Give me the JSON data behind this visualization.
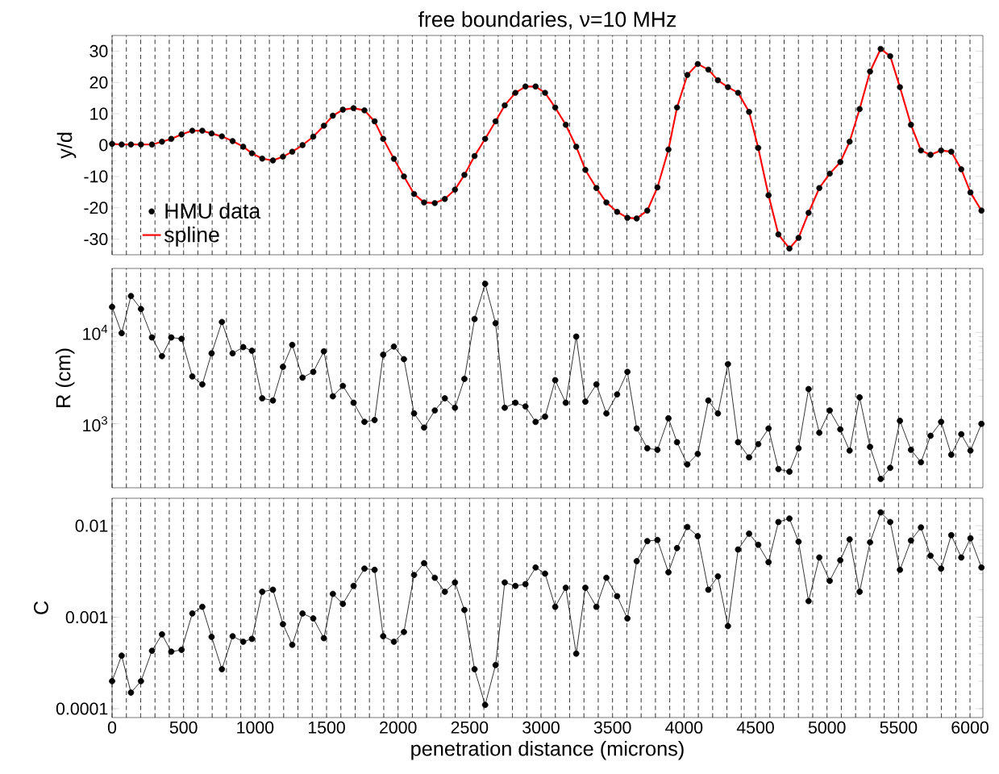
{
  "chart_data": [
    {
      "type": "scatter",
      "title": "free boundaries, ν=10 MHz",
      "ylabel": "y/d",
      "xlim": [
        0,
        6090
      ],
      "ylim": [
        -35,
        35
      ],
      "xticks": [
        0,
        500,
        1000,
        1500,
        2000,
        2500,
        3000,
        3500,
        4000,
        4500,
        5000,
        5500,
        6000
      ],
      "yticks": [
        -30,
        -20,
        -10,
        0,
        10,
        20,
        30
      ],
      "tick_labels": "y",
      "grid": "x",
      "legend": "bottom left",
      "series": [
        {
          "name": "HMU data",
          "type": "scatter",
          "marker": "circle",
          "color": "#000000",
          "x": [
            0,
            67,
            132,
            202,
            279,
            349,
            414,
            486,
            561,
            631,
            696,
            768,
            843,
            917,
            978,
            1050,
            1125,
            1195,
            1260,
            1332,
            1407,
            1481,
            1544,
            1614,
            1689,
            1765,
            1836,
            1896,
            1971,
            2041,
            2112,
            2182,
            2257,
            2327,
            2398,
            2464,
            2535,
            2609,
            2682,
            2746,
            2821,
            2891,
            2962,
            3028,
            3099,
            3173,
            3246,
            3310,
            3387,
            3457,
            3532,
            3604,
            3669,
            3743,
            3814,
            3891,
            3951,
            4023,
            4096,
            4170,
            4237,
            4307,
            4378,
            4455,
            4519,
            4591,
            4660,
            4737,
            4801,
            4871,
            4946,
            5019,
            5093,
            5158,
            5228,
            5301,
            5375,
            5442,
            5510,
            5587,
            5657,
            5724,
            5798,
            5869,
            5939,
            6003,
            6080
          ],
          "values": [
            0.4,
            0.2,
            0.2,
            0.2,
            0.2,
            1.1,
            2.0,
            3.4,
            4.6,
            4.6,
            3.7,
            2.8,
            1.3,
            -0.5,
            -2.6,
            -4.3,
            -4.9,
            -3.7,
            -2.1,
            0.0,
            2.7,
            6.2,
            9.4,
            11.3,
            11.8,
            11.1,
            7.6,
            2.0,
            -4.4,
            -10.0,
            -15.6,
            -18.3,
            -18.5,
            -17.2,
            -14.2,
            -9.5,
            -3.5,
            2.0,
            7.6,
            12.7,
            16.7,
            18.7,
            18.7,
            16.7,
            12.0,
            6.5,
            -0.5,
            -7.9,
            -13.7,
            -18.3,
            -21.3,
            -23.2,
            -23.4,
            -20.9,
            -13.5,
            -1.4,
            12.0,
            22.4,
            25.9,
            24.1,
            20.7,
            18.5,
            16.7,
            10.6,
            -0.9,
            -16.0,
            -28.5,
            -33.0,
            -29.6,
            -21.6,
            -13.7,
            -9.1,
            -5.4,
            1.1,
            11.5,
            23.5,
            30.7,
            28.4,
            18.5,
            6.5,
            -1.7,
            -3.1,
            -1.7,
            -2.1,
            -7.7,
            -15.1,
            -20.9
          ]
        },
        {
          "name": "spline",
          "type": "line",
          "marker": "none",
          "color": "#ff0000",
          "x": [
            0,
            67,
            132,
            202,
            279,
            349,
            414,
            486,
            561,
            631,
            696,
            768,
            843,
            917,
            978,
            1050,
            1125,
            1195,
            1260,
            1332,
            1407,
            1481,
            1544,
            1614,
            1689,
            1765,
            1836,
            1896,
            1971,
            2041,
            2112,
            2182,
            2257,
            2327,
            2398,
            2464,
            2535,
            2609,
            2682,
            2746,
            2821,
            2891,
            2962,
            3028,
            3099,
            3173,
            3246,
            3310,
            3387,
            3457,
            3532,
            3604,
            3669,
            3743,
            3814,
            3891,
            3951,
            4023,
            4096,
            4170,
            4237,
            4307,
            4378,
            4455,
            4519,
            4591,
            4660,
            4737,
            4801,
            4871,
            4946,
            5019,
            5093,
            5158,
            5228,
            5301,
            5375,
            5442,
            5510,
            5587,
            5657,
            5724,
            5798,
            5869,
            5939,
            6003,
            6080
          ],
          "values": [
            0.4,
            0.2,
            0.2,
            0.2,
            0.2,
            1.1,
            2.0,
            3.4,
            4.6,
            4.6,
            3.7,
            2.8,
            1.3,
            -0.5,
            -2.6,
            -4.3,
            -4.9,
            -3.7,
            -2.1,
            0.0,
            2.7,
            6.2,
            9.4,
            11.3,
            11.8,
            11.1,
            7.6,
            2.0,
            -4.4,
            -10.0,
            -15.6,
            -18.3,
            -18.5,
            -17.2,
            -14.2,
            -9.5,
            -3.5,
            2.0,
            7.6,
            12.7,
            16.7,
            18.7,
            18.7,
            16.7,
            12.0,
            6.5,
            -0.5,
            -7.9,
            -13.7,
            -18.3,
            -21.3,
            -23.2,
            -23.4,
            -20.9,
            -13.5,
            -1.4,
            12.0,
            22.4,
            25.9,
            24.1,
            20.7,
            18.5,
            16.7,
            10.6,
            -0.9,
            -16.0,
            -28.5,
            -33.0,
            -29.6,
            -21.6,
            -13.7,
            -9.1,
            -5.4,
            1.1,
            11.5,
            23.5,
            30.7,
            28.4,
            18.5,
            6.5,
            -1.7,
            -3.1,
            -1.7,
            -2.1,
            -7.7,
            -15.1,
            -20.9
          ]
        }
      ]
    },
    {
      "type": "line",
      "ylabel": "R (cm)",
      "log": "y",
      "marker": "circle",
      "xlim": [
        0,
        6090
      ],
      "ylim": [
        200,
        50000
      ],
      "xticks": [
        0,
        500,
        1000,
        1500,
        2000,
        2500,
        3000,
        3500,
        4000,
        4500,
        5000,
        5500,
        6000
      ],
      "yticks": [
        {
          "value": 1000,
          "label": "10$^{3}$"
        },
        {
          "value": 10000,
          "label": "10$^{4}$"
        }
      ],
      "tick_labels": "y",
      "grid": "x",
      "series": [
        {
          "color": "#000000",
          "x": [
            0,
            67,
            132,
            202,
            279,
            349,
            414,
            486,
            561,
            631,
            696,
            768,
            843,
            917,
            978,
            1050,
            1125,
            1195,
            1260,
            1332,
            1407,
            1481,
            1544,
            1614,
            1689,
            1765,
            1836,
            1896,
            1971,
            2041,
            2112,
            2182,
            2257,
            2327,
            2398,
            2464,
            2535,
            2609,
            2682,
            2746,
            2821,
            2891,
            2962,
            3028,
            3099,
            3173,
            3246,
            3310,
            3387,
            3457,
            3532,
            3604,
            3669,
            3743,
            3814,
            3891,
            3951,
            4023,
            4096,
            4170,
            4237,
            4307,
            4378,
            4455,
            4519,
            4591,
            4660,
            4737,
            4801,
            4871,
            4946,
            5019,
            5093,
            5158,
            5228,
            5301,
            5375,
            5442,
            5510,
            5587,
            5657,
            5724,
            5798,
            5869,
            5939,
            6003,
            6080
          ],
          "values": [
            19000,
            9800,
            25000,
            18000,
            8800,
            5500,
            8800,
            8500,
            3300,
            2700,
            5900,
            13000,
            5900,
            6900,
            6300,
            1900,
            1800,
            4200,
            7300,
            3200,
            3700,
            6200,
            2000,
            2600,
            1700,
            1050,
            1100,
            5700,
            7000,
            5100,
            1300,
            910,
            1400,
            1900,
            1500,
            3100,
            14000,
            34000,
            12600,
            1500,
            1700,
            1550,
            1050,
            1200,
            3000,
            1700,
            9000,
            1750,
            2700,
            1300,
            2100,
            3700,
            890,
            540,
            520,
            1150,
            630,
            360,
            470,
            1800,
            1300,
            4500,
            630,
            430,
            600,
            890,
            320,
            300,
            540,
            2400,
            800,
            1400,
            870,
            510,
            1950,
            560,
            250,
            330,
            1080,
            520,
            380,
            740,
            1050,
            460,
            770,
            510,
            1000
          ]
        }
      ]
    },
    {
      "type": "line",
      "ylabel": "C",
      "xlabel": "penetration distance (microns)",
      "log": "y",
      "marker": "circle",
      "xlim": [
        0,
        6090
      ],
      "ylim": [
        8e-05,
        0.02
      ],
      "xticks": [
        0,
        500,
        1000,
        1500,
        2000,
        2500,
        3000,
        3500,
        4000,
        4500,
        5000,
        5500,
        6000
      ],
      "yticks": [
        {
          "value": 0.0001,
          "label": "0.0001"
        },
        {
          "value": 0.001,
          "label": "0.001"
        },
        {
          "value": 0.01,
          "label": "0.01"
        }
      ],
      "grid": "x",
      "series": [
        {
          "color": "#000000",
          "x": [
            0,
            67,
            132,
            202,
            279,
            349,
            414,
            486,
            561,
            631,
            696,
            768,
            843,
            917,
            978,
            1050,
            1125,
            1195,
            1260,
            1332,
            1407,
            1481,
            1544,
            1614,
            1689,
            1765,
            1836,
            1896,
            1971,
            2041,
            2112,
            2182,
            2257,
            2327,
            2398,
            2464,
            2535,
            2609,
            2682,
            2746,
            2821,
            2891,
            2962,
            3028,
            3099,
            3173,
            3246,
            3310,
            3387,
            3457,
            3532,
            3604,
            3669,
            3743,
            3814,
            3891,
            3951,
            4023,
            4096,
            4170,
            4237,
            4307,
            4378,
            4455,
            4519,
            4591,
            4660,
            4737,
            4801,
            4871,
            4946,
            5019,
            5093,
            5158,
            5228,
            5301,
            5375,
            5442,
            5510,
            5587,
            5657,
            5724,
            5798,
            5869,
            5939,
            6003,
            6080
          ],
          "values": [
            0.0002,
            0.00038,
            0.00015,
            0.0002,
            0.00043,
            0.00065,
            0.00042,
            0.00044,
            0.0011,
            0.0013,
            0.00061,
            0.00027,
            0.00062,
            0.00054,
            0.00058,
            0.0019,
            0.002,
            0.00084,
            0.0005,
            0.0011,
            0.00097,
            0.00059,
            0.0018,
            0.0014,
            0.0022,
            0.0034,
            0.0033,
            0.00062,
            0.00054,
            0.00069,
            0.0029,
            0.0039,
            0.0027,
            0.0019,
            0.0024,
            0.0012,
            0.00027,
            0.00011,
            0.0003,
            0.0024,
            0.0022,
            0.0023,
            0.0035,
            0.003,
            0.0013,
            0.0021,
            0.0004,
            0.0021,
            0.0013,
            0.0027,
            0.0017,
            0.00097,
            0.0041,
            0.0068,
            0.007,
            0.0031,
            0.0057,
            0.0097,
            0.0077,
            0.002,
            0.0028,
            0.0008,
            0.0055,
            0.0082,
            0.0062,
            0.004,
            0.011,
            0.012,
            0.0067,
            0.0015,
            0.0045,
            0.0025,
            0.0042,
            0.0071,
            0.0019,
            0.0066,
            0.014,
            0.011,
            0.0033,
            0.0069,
            0.0096,
            0.0047,
            0.0034,
            0.0079,
            0.0045,
            0.0073,
            0.0035
          ]
        }
      ]
    }
  ]
}
